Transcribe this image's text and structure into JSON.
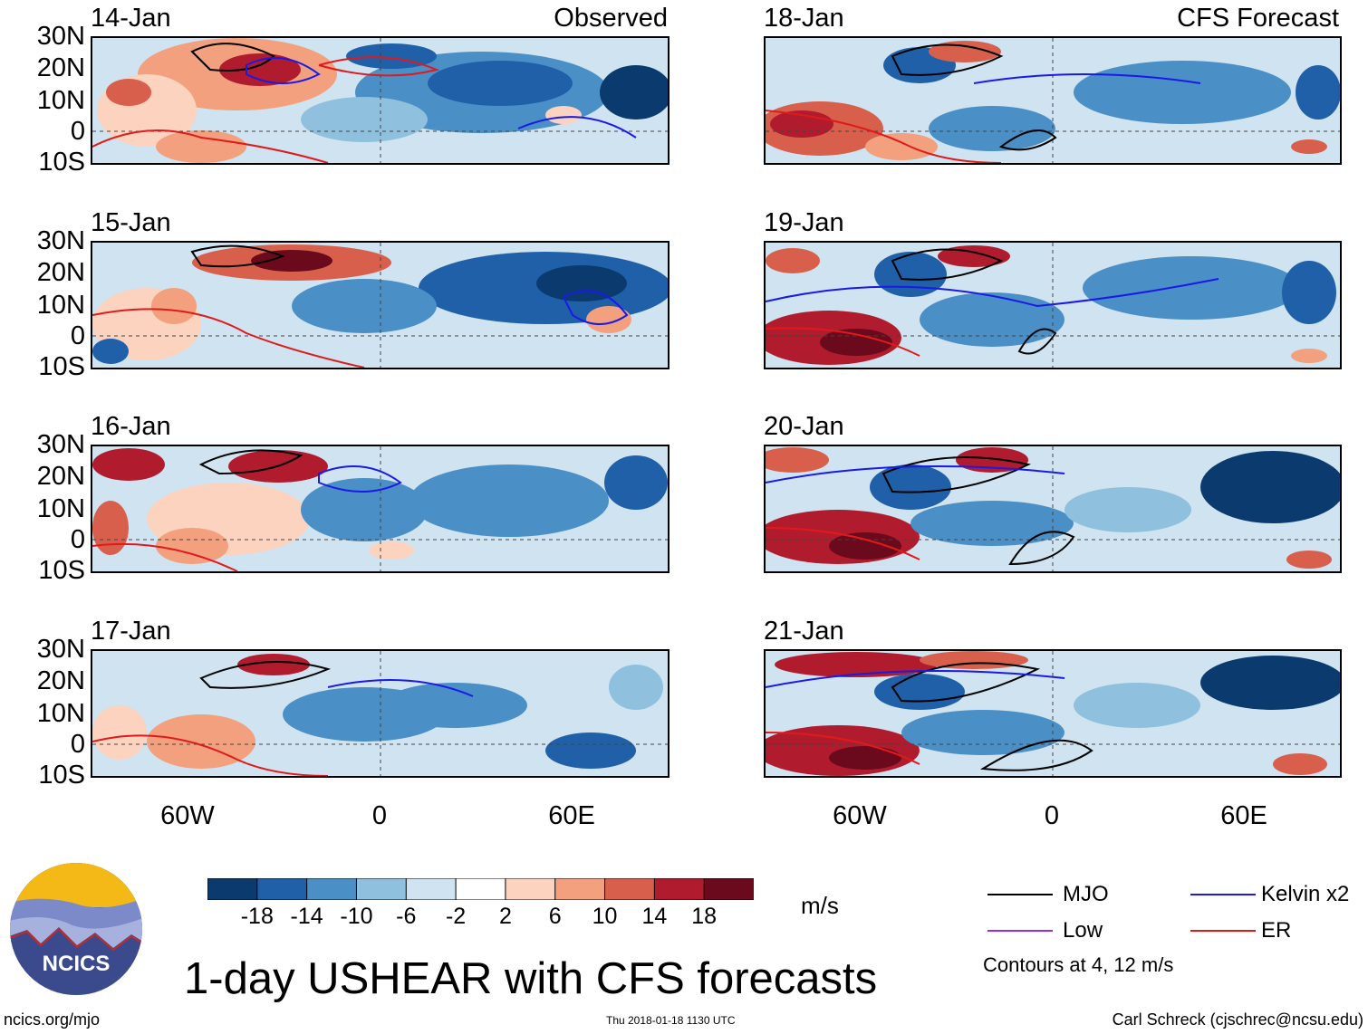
{
  "header": {
    "observed_label": "Observed",
    "forecast_label": "CFS Forecast"
  },
  "latitude_labels": [
    "30N",
    "20N",
    "10N",
    "0",
    "10S"
  ],
  "longitude_labels": [
    "60W",
    "0",
    "60E"
  ],
  "panels": {
    "observed": [
      {
        "date": "14-Jan"
      },
      {
        "date": "15-Jan"
      },
      {
        "date": "16-Jan"
      },
      {
        "date": "17-Jan"
      }
    ],
    "forecast": [
      {
        "date": "18-Jan"
      },
      {
        "date": "19-Jan"
      },
      {
        "date": "20-Jan"
      },
      {
        "date": "21-Jan"
      }
    ]
  },
  "colorbar": {
    "ticks": [
      "-18",
      "-14",
      "-10",
      "-6",
      "-2",
      "2",
      "6",
      "10",
      "14",
      "18"
    ],
    "units": "m/s",
    "colors": [
      "#0b3b6e",
      "#2060a8",
      "#4a8fc6",
      "#8fc0de",
      "#cfe3f0",
      "#ffffff",
      "#fbd3bf",
      "#f2a07d",
      "#d75f4c",
      "#b01c2e",
      "#6a0a1c"
    ]
  },
  "legend": {
    "items": [
      {
        "label": "MJO",
        "color": "#000000"
      },
      {
        "label": "Kelvin x2",
        "color": "#1a1ae6"
      },
      {
        "label": "Low",
        "color": "#9b30d9"
      },
      {
        "label": "ER",
        "color": "#e01a1a"
      }
    ],
    "note": "Contours at 4, 12 m/s"
  },
  "logo": {
    "text": "NCICS"
  },
  "title": "1-day USHEAR with CFS forecasts",
  "footer": {
    "website": "ncics.org/mjo",
    "timestamp": "Thu 2018-01-18 1130 UTC",
    "author": "Carl Schreck (cjschrec@ncsu.edu)"
  }
}
